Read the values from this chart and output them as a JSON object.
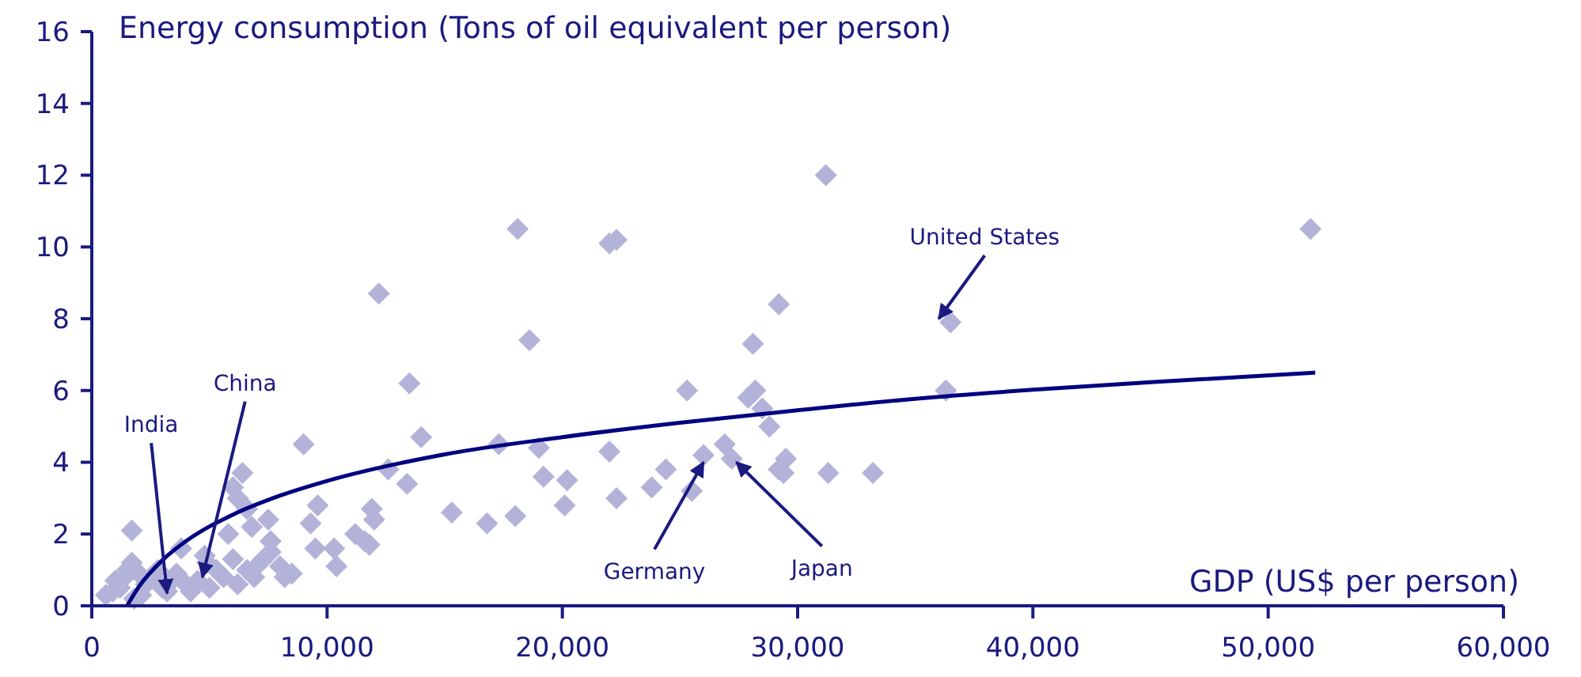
{
  "chart_data": {
    "type": "scatter",
    "ylabel": "Energy consumption (Tons of oil equivalent per person)",
    "xlabel": "GDP (US$ per person)",
    "xlim": [
      0,
      60000
    ],
    "ylim": [
      0,
      16
    ],
    "xticks": [
      0,
      {
        "value": 10000,
        "label": "10,000"
      },
      {
        "value": 20000,
        "label": "20,000"
      },
      {
        "value": 30000,
        "label": "30,000"
      },
      {
        "value": 40000,
        "label": "40,000"
      },
      {
        "value": 50000,
        "label": "50,000"
      },
      {
        "value": 60000,
        "label": "60,000"
      }
    ],
    "yticks": [
      0,
      2,
      4,
      6,
      8,
      10,
      12,
      14,
      16
    ],
    "grid": false,
    "series": [
      {
        "color": "#b3b3d9",
        "marker": "diamond",
        "x": [
          12200,
          18100,
          22000,
          22300,
          31200,
          51800,
          18600,
          29200,
          28100,
          36500,
          13500,
          25300,
          36300,
          27900,
          28200,
          28500,
          28800,
          9000,
          14000,
          17300,
          19000,
          22000,
          26000,
          26900,
          27200,
          29500,
          29200,
          29400,
          24400,
          23800,
          25500,
          31300,
          33200,
          12600,
          13400,
          19200,
          20200,
          20100,
          22300,
          15300,
          16800,
          18000,
          9600,
          9300,
          11900,
          12000,
          11600,
          11800,
          10300,
          10400,
          11200,
          9500,
          8500,
          8200,
          1700,
          6400,
          6000,
          6200,
          6600,
          6800,
          7500,
          7600,
          5800,
          3800,
          4800,
          4900,
          5300,
          6000,
          6600,
          7000,
          7300,
          7600,
          6200,
          6900,
          4500,
          4000,
          3400,
          3000,
          2600,
          2300,
          2000,
          1700,
          1400,
          1200,
          900,
          600,
          1000,
          1500,
          2100,
          1800,
          3200,
          3600,
          5000,
          4200,
          5600,
          2800,
          8000
        ],
        "values": [
          8.7,
          10.5,
          10.1,
          10.2,
          12.0,
          10.5,
          7.4,
          8.4,
          7.3,
          7.9,
          6.2,
          6.0,
          6.0,
          5.8,
          6.0,
          5.5,
          5.0,
          4.5,
          4.7,
          4.5,
          4.4,
          4.3,
          4.2,
          4.5,
          4.1,
          4.1,
          3.8,
          3.7,
          3.8,
          3.3,
          3.2,
          3.7,
          3.7,
          3.8,
          3.4,
          3.6,
          3.5,
          2.8,
          3.0,
          2.6,
          2.3,
          2.5,
          2.8,
          2.3,
          2.7,
          2.4,
          1.8,
          1.7,
          1.6,
          1.1,
          2.0,
          1.6,
          0.9,
          0.8,
          2.1,
          3.7,
          3.3,
          3.0,
          2.7,
          2.2,
          2.4,
          1.8,
          2.0,
          1.6,
          1.4,
          1.2,
          1.0,
          1.3,
          1.0,
          1.1,
          1.3,
          1.5,
          0.6,
          0.8,
          0.7,
          0.6,
          0.7,
          0.5,
          0.8,
          0.6,
          0.9,
          1.2,
          0.8,
          0.5,
          0.4,
          0.3,
          0.7,
          1.0,
          0.3,
          0.2,
          0.4,
          0.9,
          0.5,
          0.4,
          0.8,
          1.0,
          1.1
        ]
      },
      {
        "type": "line",
        "color": "#000080",
        "marker": "none",
        "line_style": "solid",
        "x": [
          1500,
          2000,
          3000,
          4000,
          6000,
          8000,
          10000,
          15000,
          20000,
          25000,
          30000,
          35000,
          40000,
          45000,
          52000
        ],
        "values": [
          0,
          0.53,
          1.27,
          1.8,
          2.54,
          3.07,
          3.48,
          4.22,
          4.7,
          5.1,
          5.45,
          5.77,
          6.02,
          6.23,
          6.5
        ]
      }
    ],
    "annotations": [
      {
        "text": "India",
        "x": 3200,
        "y": 0.35
      },
      {
        "text": "China",
        "x": 4700,
        "y": 0.8
      },
      {
        "text": "Germany",
        "x": 26000,
        "y": 4.0
      },
      {
        "text": "Japan",
        "x": 27400,
        "y": 4.0
      },
      {
        "text": "United States",
        "x": 36000,
        "y": 8.0
      }
    ]
  }
}
